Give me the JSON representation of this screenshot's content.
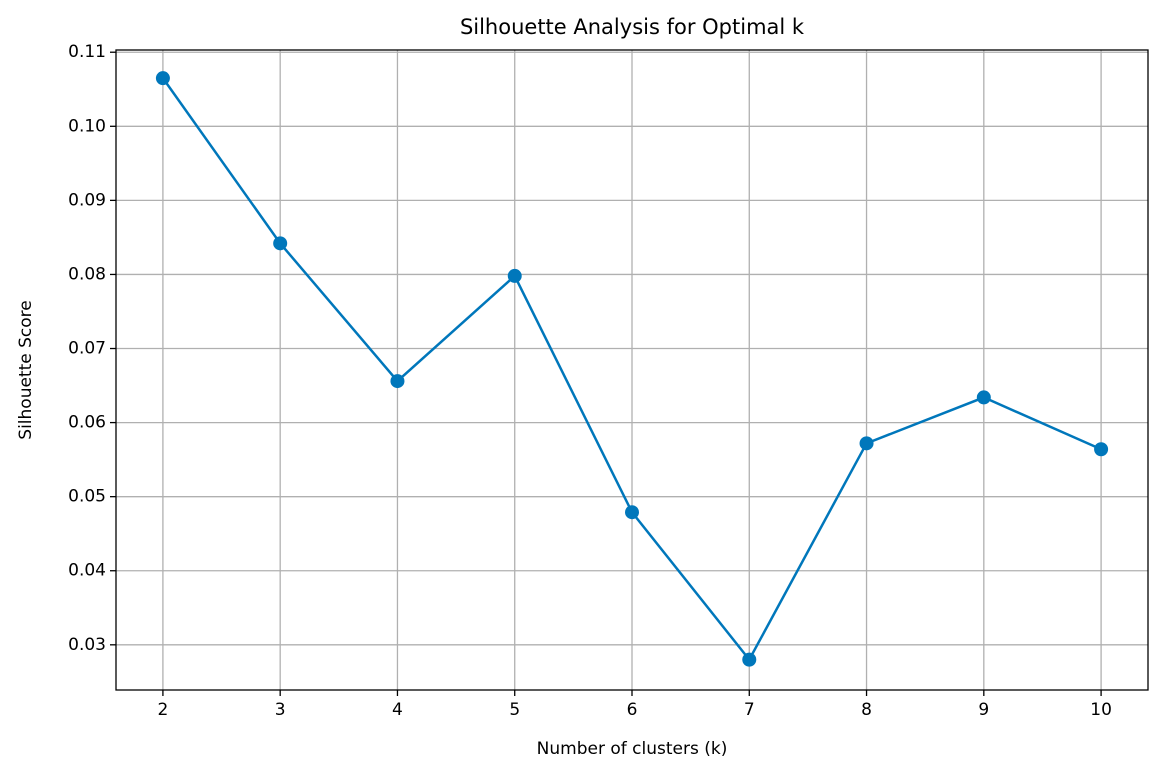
{
  "chart_data": {
    "type": "line",
    "title": "Silhouette Analysis for Optimal k",
    "x_label": "Number of clusters (k)",
    "y_label": "Silhouette Score",
    "x": [
      2,
      3,
      4,
      5,
      6,
      7,
      8,
      9,
      10
    ],
    "values": [
      0.1065,
      0.0842,
      0.0656,
      0.0798,
      0.0479,
      0.028,
      0.0572,
      0.0634,
      0.0564
    ],
    "color": "#0077bb",
    "xlim": [
      1.6,
      10.4
    ],
    "xticks": [
      2,
      3,
      4,
      5,
      6,
      7,
      8,
      9,
      10
    ],
    "ylim": [
      0.0239,
      0.1103
    ],
    "yticks": [
      0.03,
      0.04,
      0.05,
      0.06,
      0.07,
      0.08,
      0.09,
      {
        "value": 0.1,
        "label": "0.10"
      },
      0.11
    ],
    "grid": true
  }
}
